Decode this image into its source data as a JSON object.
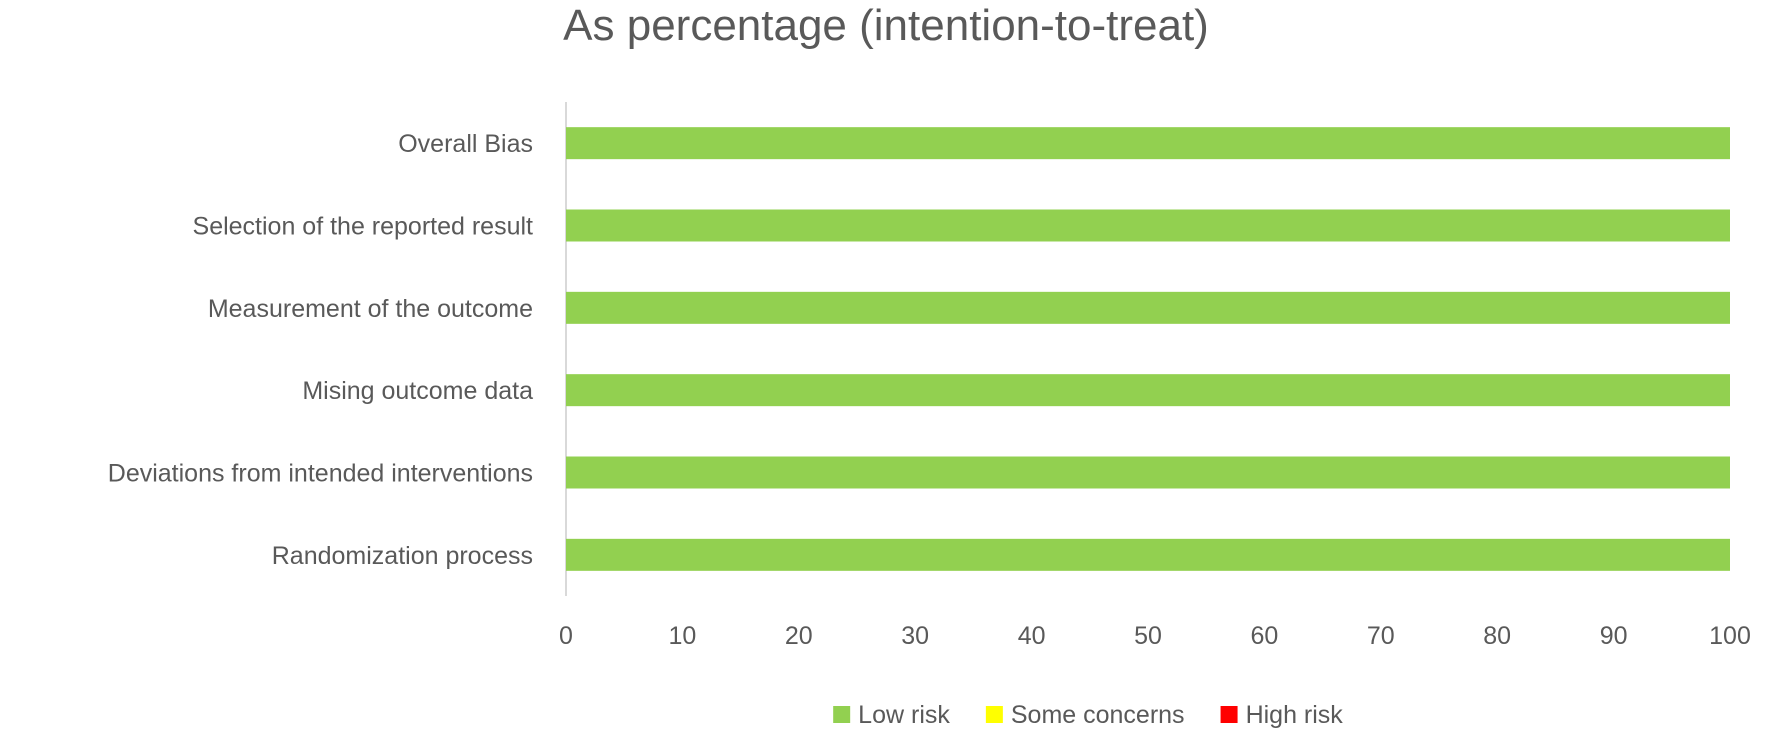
{
  "chart_data": {
    "type": "bar",
    "orientation": "horizontal",
    "stacked": true,
    "title": "As percentage (intention-to-treat)",
    "xlabel": "",
    "ylabel": "",
    "categories": [
      "Randomization process",
      "Deviations from intended interventions",
      "Mising outcome data",
      "Measurement of the outcome",
      "Selection of the reported result",
      "Overall Bias"
    ],
    "series": [
      {
        "name": "Low risk",
        "color": "#92d050",
        "values": [
          100,
          100,
          100,
          100,
          100,
          100
        ]
      },
      {
        "name": "Some concerns",
        "color": "#ffff00",
        "values": [
          0,
          0,
          0,
          0,
          0,
          0
        ]
      },
      {
        "name": "High risk",
        "color": "#ff0000",
        "values": [
          0,
          0,
          0,
          0,
          0,
          0
        ]
      }
    ],
    "xlim": [
      0,
      100
    ],
    "xticks": [
      0,
      10,
      20,
      30,
      40,
      50,
      60,
      70,
      80,
      90,
      100
    ],
    "grid": false,
    "legend_position": "bottom"
  }
}
